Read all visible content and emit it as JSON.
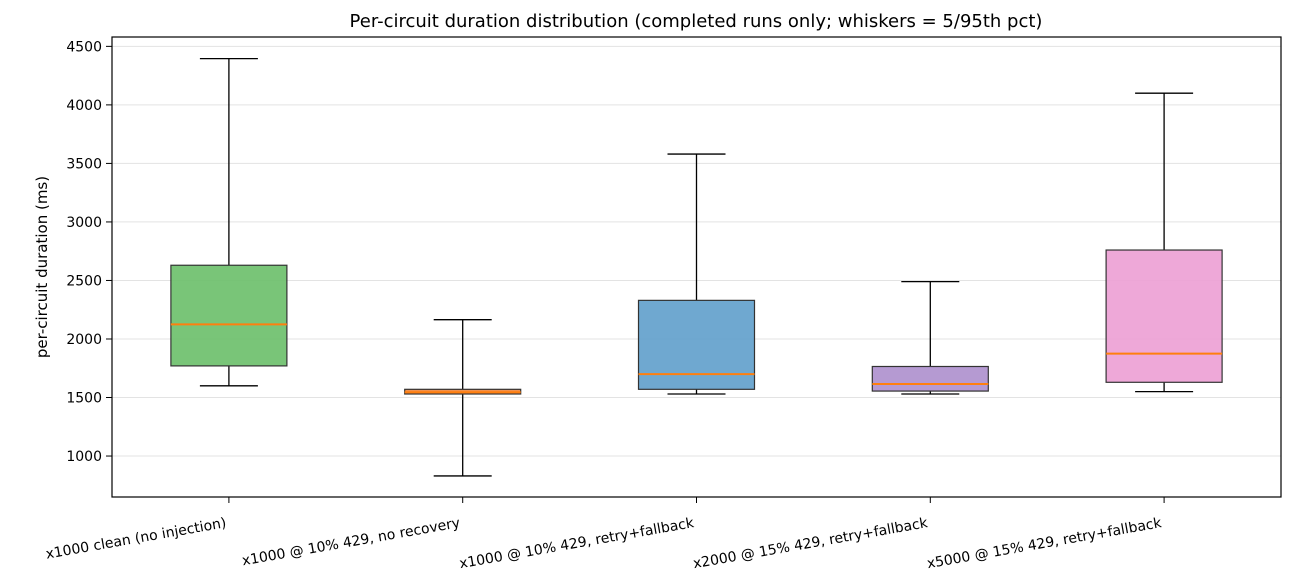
{
  "chart_data": {
    "type": "boxplot",
    "title": "Per-circuit duration distribution (completed runs only; whiskers = 5/95th pct)",
    "xlabel": "",
    "ylabel": "per-circuit duration (ms)",
    "ylim": [
      650,
      4580
    ],
    "yticks": [
      1000,
      1500,
      2000,
      2500,
      3000,
      3500,
      4000,
      4500
    ],
    "grid": "horizontal",
    "legend": "none",
    "categories": [
      "x1000 clean (no injection)",
      "x1000 @ 10% 429, no recovery",
      "x1000 @ 10% 429, retry+fallback",
      "x2000 @ 15% 429, retry+fallback",
      "x5000 @ 15% 429, retry+fallback"
    ],
    "boxes": [
      {
        "whisker_low": 1600,
        "q1": 1770,
        "median": 2125,
        "q3": 2630,
        "whisker_high": 4395,
        "color": "#6abf69"
      },
      {
        "whisker_low": 830,
        "q1": 1530,
        "median": 1545,
        "q3": 1570,
        "whisker_high": 2165,
        "color": "#f0853a"
      },
      {
        "whisker_low": 1530,
        "q1": 1570,
        "median": 1700,
        "q3": 2330,
        "whisker_high": 3580,
        "color": "#5f9ecb"
      },
      {
        "whisker_low": 1530,
        "q1": 1555,
        "median": 1615,
        "q3": 1765,
        "whisker_high": 2490,
        "color": "#ad8fcd"
      },
      {
        "whisker_low": 1550,
        "q1": 1630,
        "median": 1875,
        "q3": 2760,
        "whisker_high": 4100,
        "color": "#ec9fd4"
      }
    ],
    "median_color": "#ff7f0e"
  }
}
